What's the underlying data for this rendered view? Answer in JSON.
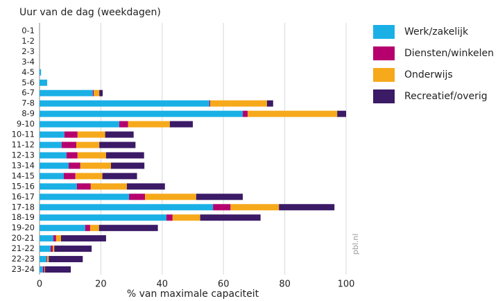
{
  "chart_data": {
    "type": "stacked_barh",
    "title": "Uur van de dag (weekdagen)",
    "x_label": "% van maximale capaciteit",
    "annotation": "pbl.nl",
    "categories": [
      "0-1",
      "1-2",
      "2-3",
      "3-4",
      "4-5",
      "5-6",
      "6-7",
      "7-8",
      "8-9",
      "9-10",
      "10-11",
      "11-12",
      "12-13",
      "13-14",
      "14-15",
      "15-16",
      "16-17",
      "17-18",
      "18-19",
      "19-20",
      "20-21",
      "21-22",
      "22-23",
      "23-24"
    ],
    "series": [
      {
        "name": "Werk/zakelijk",
        "color": "#1ab0e6",
        "values": [
          0,
          0,
          0,
          0,
          0.5,
          2.5,
          17.4,
          55.4,
          66.3,
          26,
          8.1,
          7.2,
          8.8,
          9.5,
          7.9,
          12.2,
          29.2,
          56.6,
          41.4,
          14.9,
          4.5,
          3.6,
          2.3,
          1.1
        ]
      },
      {
        "name": "Diensten/winkelen",
        "color": "#b5006e",
        "values": [
          0,
          0,
          0,
          0,
          0,
          0,
          0.3,
          0.3,
          1.6,
          2.9,
          4.3,
          4.8,
          3.6,
          3.8,
          3.8,
          4.5,
          5.2,
          5.7,
          2,
          1.6,
          0.9,
          0.7,
          0.2,
          0.5
        ]
      },
      {
        "name": "Onderwijs",
        "color": "#f6a91b",
        "values": [
          0,
          0,
          0,
          0,
          0,
          0,
          1.8,
          18.5,
          29.2,
          13.6,
          9,
          7.5,
          9.3,
          10,
          8.8,
          11.8,
          16.7,
          15.8,
          9,
          2.9,
          1.6,
          0.5,
          0.5,
          0.2
        ]
      },
      {
        "name": "Recreatief/overig",
        "color": "#3b1a66",
        "values": [
          0,
          0,
          0,
          0,
          0,
          0,
          1.1,
          2,
          2.9,
          7.5,
          9.3,
          11.8,
          12.4,
          10.9,
          11.3,
          12.4,
          15.2,
          18.1,
          19.7,
          19.2,
          14.7,
          12.2,
          11.1,
          8.4
        ]
      }
    ],
    "xlim": [
      0,
      100
    ],
    "xticks": [
      0,
      20,
      40,
      60,
      80,
      100
    ],
    "grid": true,
    "legend": "right"
  }
}
